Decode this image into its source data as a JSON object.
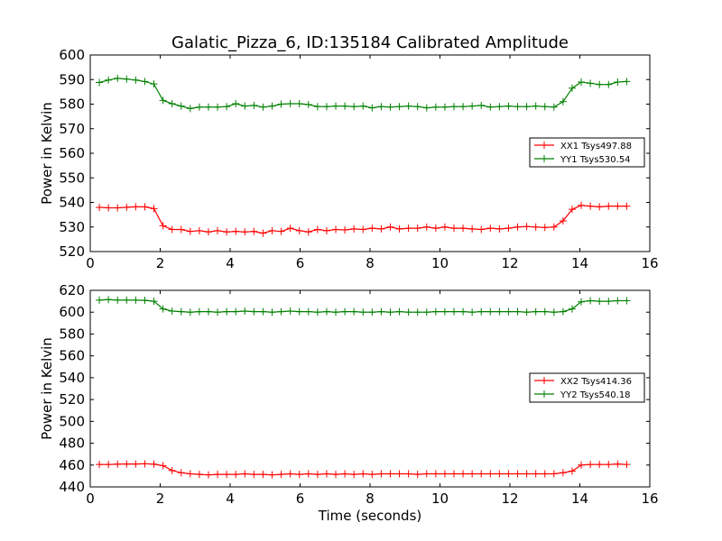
{
  "title": "Galatic_Pizza_6, ID:135184 Calibrated Amplitude",
  "colors": {
    "xx": "#ff0000",
    "yy": "#008000",
    "axes": "#000000",
    "background": "#ffffff"
  },
  "chart_data": [
    {
      "type": "line",
      "ylabel": "Power in Kelvin",
      "xlabel": "",
      "xlim": [
        0,
        16
      ],
      "ylim": [
        520,
        600
      ],
      "xticks": [
        0,
        2,
        4,
        6,
        8,
        10,
        12,
        14,
        16
      ],
      "yticks": [
        520,
        530,
        540,
        550,
        560,
        570,
        580,
        590,
        600
      ],
      "grid": false,
      "legend_position": "center-right",
      "x": [
        0.26,
        0.52,
        0.78,
        1.04,
        1.3,
        1.56,
        1.82,
        2.08,
        2.34,
        2.6,
        2.86,
        3.12,
        3.38,
        3.64,
        3.9,
        4.16,
        4.42,
        4.68,
        4.94,
        5.2,
        5.46,
        5.72,
        5.98,
        6.24,
        6.5,
        6.76,
        7.02,
        7.28,
        7.54,
        7.8,
        8.06,
        8.32,
        8.58,
        8.84,
        9.1,
        9.36,
        9.62,
        9.88,
        10.14,
        10.4,
        10.66,
        10.92,
        11.18,
        11.44,
        11.7,
        11.96,
        12.22,
        12.48,
        12.74,
        13.0,
        13.26,
        13.52,
        13.78,
        14.04,
        14.3,
        14.56,
        14.82,
        15.08,
        15.34
      ],
      "series": [
        {
          "name": "XX1 Tsys497.88",
          "color": "#ff0000",
          "values": [
            538.0,
            537.8,
            537.8,
            538.0,
            538.2,
            538.2,
            537.5,
            530.5,
            529.0,
            529.0,
            528.2,
            528.5,
            528.0,
            528.5,
            528.0,
            528.2,
            528.0,
            528.2,
            527.5,
            528.5,
            528.2,
            529.5,
            528.5,
            528.0,
            529.0,
            528.5,
            529.0,
            528.8,
            529.2,
            529.0,
            529.5,
            529.2,
            530.0,
            529.2,
            529.5,
            529.5,
            530.0,
            529.5,
            530.0,
            529.5,
            529.5,
            529.2,
            529.0,
            529.5,
            529.2,
            529.5,
            530.0,
            530.2,
            530.0,
            529.8,
            530.0,
            532.5,
            537.2,
            538.8,
            538.5,
            538.2,
            538.5,
            538.5,
            538.5
          ]
        },
        {
          "name": "YY1 Tsys530.54",
          "color": "#008000",
          "values": [
            588.8,
            589.8,
            590.5,
            590.2,
            589.8,
            589.2,
            588.2,
            581.5,
            580.2,
            579.2,
            578.2,
            578.8,
            578.8,
            578.8,
            579.0,
            580.2,
            579.2,
            579.5,
            578.8,
            579.2,
            580.0,
            580.2,
            580.2,
            579.8,
            579.0,
            579.0,
            579.2,
            579.2,
            579.0,
            579.2,
            578.5,
            579.0,
            578.8,
            579.0,
            579.2,
            579.0,
            578.5,
            578.8,
            578.8,
            579.0,
            579.0,
            579.2,
            579.5,
            578.8,
            579.0,
            579.2,
            579.0,
            579.0,
            579.2,
            579.0,
            578.8,
            581.0,
            586.5,
            589.0,
            588.5,
            588.0,
            588.0,
            589.0,
            589.2
          ]
        }
      ]
    },
    {
      "type": "line",
      "ylabel": "Power in Kelvin",
      "xlabel": "Time (seconds)",
      "xlim": [
        0,
        16
      ],
      "ylim": [
        440,
        620
      ],
      "xticks": [
        0,
        2,
        4,
        6,
        8,
        10,
        12,
        14,
        16
      ],
      "yticks": [
        440,
        460,
        480,
        500,
        520,
        540,
        560,
        580,
        600,
        620
      ],
      "grid": false,
      "legend_position": "center-right",
      "x": [
        0.26,
        0.52,
        0.78,
        1.04,
        1.3,
        1.56,
        1.82,
        2.08,
        2.34,
        2.6,
        2.86,
        3.12,
        3.38,
        3.64,
        3.9,
        4.16,
        4.42,
        4.68,
        4.94,
        5.2,
        5.46,
        5.72,
        5.98,
        6.24,
        6.5,
        6.76,
        7.02,
        7.28,
        7.54,
        7.8,
        8.06,
        8.32,
        8.58,
        8.84,
        9.1,
        9.36,
        9.62,
        9.88,
        10.14,
        10.4,
        10.66,
        10.92,
        11.18,
        11.44,
        11.7,
        11.96,
        12.22,
        12.48,
        12.74,
        13.0,
        13.26,
        13.52,
        13.78,
        14.04,
        14.3,
        14.56,
        14.82,
        15.08,
        15.34
      ],
      "series": [
        {
          "name": "XX2 Tsys414.36",
          "color": "#ff0000",
          "values": [
            460.5,
            460.5,
            460.8,
            461.0,
            461.0,
            461.2,
            460.8,
            459.5,
            455.0,
            453.0,
            452.0,
            451.5,
            451.0,
            451.5,
            451.5,
            451.5,
            452.0,
            451.5,
            451.5,
            451.0,
            451.5,
            452.0,
            451.5,
            452.0,
            451.5,
            452.0,
            451.5,
            452.0,
            451.5,
            452.0,
            451.5,
            452.0,
            452.0,
            452.0,
            452.0,
            451.5,
            452.0,
            452.0,
            452.0,
            452.0,
            452.0,
            452.0,
            452.0,
            452.0,
            452.0,
            452.0,
            452.0,
            452.0,
            452.0,
            452.0,
            452.0,
            453.0,
            454.5,
            460.0,
            460.5,
            460.5,
            460.5,
            461.0,
            460.5
          ]
        },
        {
          "name": "YY2 Tsys540.18",
          "color": "#008000",
          "values": [
            611.0,
            611.5,
            611.0,
            611.0,
            611.0,
            610.8,
            610.0,
            603.0,
            601.0,
            600.5,
            600.0,
            600.5,
            600.5,
            600.0,
            600.5,
            600.5,
            601.0,
            600.5,
            600.5,
            600.0,
            600.5,
            601.0,
            600.5,
            600.5,
            600.0,
            600.5,
            600.0,
            600.5,
            600.5,
            600.0,
            600.0,
            600.5,
            600.0,
            600.5,
            600.0,
            600.0,
            600.0,
            600.5,
            600.5,
            600.5,
            600.5,
            600.0,
            600.5,
            600.5,
            600.5,
            600.5,
            600.5,
            600.0,
            600.5,
            600.5,
            600.0,
            600.5,
            603.0,
            609.5,
            610.5,
            610.0,
            610.0,
            610.5,
            610.5
          ]
        }
      ]
    }
  ]
}
